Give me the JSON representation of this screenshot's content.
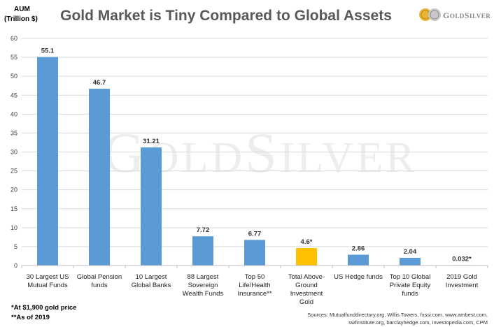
{
  "logo": {
    "brand_lettering": "GOLDSILVER"
  },
  "watermark": {
    "text": "GOLDSILVER"
  },
  "colors": {
    "bar": "#5b9bd5",
    "highlight": "#ffc000",
    "grid": "#d9d9d9",
    "title": "#595959"
  },
  "footnotes": [
    "*At $1,900 gold price",
    "**As of 2019"
  ],
  "sources": [
    "Sources: Mutualfunddirectory.org, Willis Towers, fxssi.com, www.ambest.com,",
    "swfinstitute.org, barclayhedge.com, investopedia.com, CPM"
  ],
  "chart_data": {
    "type": "bar",
    "title": "Gold Market is Tiny Compared to Global Assets",
    "ylabel_lines": [
      "AUM",
      "(Trillion $)"
    ],
    "xlabel": "",
    "ylim": [
      0,
      60
    ],
    "yticks": [
      0,
      5,
      10,
      15,
      20,
      25,
      30,
      35,
      40,
      45,
      50,
      55,
      60
    ],
    "grid": true,
    "legend": "none",
    "highlight_index": 5,
    "categories": [
      [
        "30 Largest US",
        "Mutual Funds"
      ],
      [
        "Global Pension",
        "funds"
      ],
      [
        "10 Largest",
        "Global Banks"
      ],
      [
        "88 Largest",
        "Sovereign",
        "Wealth Funds"
      ],
      [
        "Top 50",
        "Life/Health",
        "Insurance**"
      ],
      [
        "Total Above-",
        "Ground",
        "Investment",
        "Gold"
      ],
      [
        "US Hedge funds"
      ],
      [
        "Top 10 Global",
        "Private Equity",
        "funds"
      ],
      [
        "2019 Gold",
        "Investment"
      ]
    ],
    "values": [
      55.1,
      46.7,
      31.21,
      7.72,
      6.77,
      4.6,
      2.86,
      2.04,
      0.032
    ],
    "data_labels": [
      "55.1",
      "46.7",
      "31.21",
      "7.72",
      "6.77",
      "4.6*",
      "2.86",
      "2.04",
      "0.032*"
    ]
  }
}
